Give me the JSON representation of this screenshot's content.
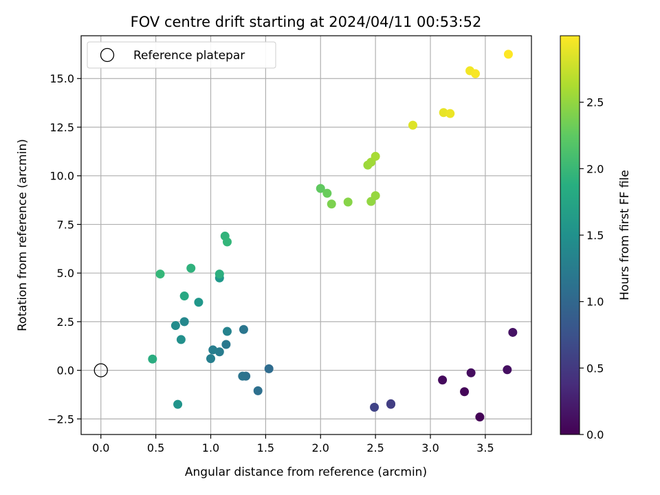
{
  "chart_data": {
    "type": "scatter",
    "title": "FOV centre drift starting at 2024/04/11 00:53:52",
    "xlabel": "Angular distance from reference (arcmin)",
    "ylabel": "Rotation from reference (arcmin)",
    "xlim": [
      -0.18,
      3.92
    ],
    "ylim": [
      -3.3,
      17.2
    ],
    "xticks": [
      0.0,
      0.5,
      1.0,
      1.5,
      2.0,
      2.5,
      3.0,
      3.5
    ],
    "xtick_labels": [
      "0.0",
      "0.5",
      "1.0",
      "1.5",
      "2.0",
      "2.5",
      "3.0",
      "3.5"
    ],
    "yticks": [
      -2.5,
      0.0,
      2.5,
      5.0,
      7.5,
      10.0,
      12.5,
      15.0
    ],
    "ytick_labels": [
      "−2.5",
      "0.0",
      "2.5",
      "5.0",
      "7.5",
      "10.0",
      "12.5",
      "15.0"
    ],
    "grid": true,
    "legend": {
      "placement": "top-left",
      "entries": [
        {
          "label": "Reference platepar",
          "marker": "open-circle"
        }
      ]
    },
    "reference_point": {
      "x": 0.0,
      "y": 0.0
    },
    "colorbar": {
      "label": "Hours from first FF file",
      "colormap": "viridis",
      "range": [
        0.0,
        3.0
      ],
      "ticks": [
        0.0,
        0.5,
        1.0,
        1.5,
        2.0,
        2.5
      ],
      "tick_labels": [
        "0.0",
        "0.5",
        "1.0",
        "1.5",
        "2.0",
        "2.5"
      ]
    },
    "points": [
      {
        "x": 3.45,
        "y": -2.4,
        "c": 0.02
      },
      {
        "x": 3.31,
        "y": -1.1,
        "c": 0.05
      },
      {
        "x": 3.11,
        "y": -0.5,
        "c": 0.08
      },
      {
        "x": 3.37,
        "y": -0.13,
        "c": 0.1
      },
      {
        "x": 3.7,
        "y": 0.03,
        "c": 0.12
      },
      {
        "x": 3.75,
        "y": 1.95,
        "c": 0.15
      },
      {
        "x": 2.64,
        "y": -1.75,
        "c": 0.52
      },
      {
        "x": 2.64,
        "y": -1.72,
        "c": 0.55
      },
      {
        "x": 2.49,
        "y": -1.9,
        "c": 0.6
      },
      {
        "x": 1.53,
        "y": 0.08,
        "c": 1.05
      },
      {
        "x": 1.43,
        "y": -1.05,
        "c": 1.1
      },
      {
        "x": 1.32,
        "y": -0.3,
        "c": 1.12
      },
      {
        "x": 1.29,
        "y": -0.3,
        "c": 1.15
      },
      {
        "x": 1.3,
        "y": 2.1,
        "c": 1.18
      },
      {
        "x": 1.14,
        "y": 1.33,
        "c": 1.2
      },
      {
        "x": 1.08,
        "y": 0.95,
        "c": 1.25
      },
      {
        "x": 1.02,
        "y": 1.05,
        "c": 1.28
      },
      {
        "x": 1.0,
        "y": 0.6,
        "c": 1.3
      },
      {
        "x": 1.15,
        "y": 2.0,
        "c": 1.35
      },
      {
        "x": 0.76,
        "y": 2.5,
        "c": 1.4
      },
      {
        "x": 0.68,
        "y": 2.3,
        "c": 1.45
      },
      {
        "x": 0.73,
        "y": 1.58,
        "c": 1.5
      },
      {
        "x": 0.7,
        "y": -1.75,
        "c": 1.55
      },
      {
        "x": 0.89,
        "y": 3.5,
        "c": 1.58
      },
      {
        "x": 1.08,
        "y": 4.75,
        "c": 1.6
      },
      {
        "x": 0.76,
        "y": 3.82,
        "c": 1.8
      },
      {
        "x": 0.47,
        "y": 0.58,
        "c": 1.85
      },
      {
        "x": 1.08,
        "y": 4.95,
        "c": 1.88
      },
      {
        "x": 0.82,
        "y": 5.25,
        "c": 1.92
      },
      {
        "x": 1.13,
        "y": 6.9,
        "c": 1.95
      },
      {
        "x": 1.15,
        "y": 6.6,
        "c": 1.98
      },
      {
        "x": 0.54,
        "y": 4.95,
        "c": 2.0
      },
      {
        "x": 2.0,
        "y": 9.35,
        "c": 2.25
      },
      {
        "x": 2.06,
        "y": 9.1,
        "c": 2.3
      },
      {
        "x": 2.1,
        "y": 8.55,
        "c": 2.4
      },
      {
        "x": 2.25,
        "y": 8.65,
        "c": 2.45
      },
      {
        "x": 2.46,
        "y": 8.68,
        "c": 2.5
      },
      {
        "x": 2.5,
        "y": 8.98,
        "c": 2.52
      },
      {
        "x": 2.43,
        "y": 10.55,
        "c": 2.55
      },
      {
        "x": 2.46,
        "y": 10.7,
        "c": 2.57
      },
      {
        "x": 2.5,
        "y": 11.0,
        "c": 2.6
      },
      {
        "x": 2.84,
        "y": 12.6,
        "c": 2.85
      },
      {
        "x": 3.12,
        "y": 13.25,
        "c": 2.9
      },
      {
        "x": 3.18,
        "y": 13.2,
        "c": 2.92
      },
      {
        "x": 3.36,
        "y": 15.4,
        "c": 2.95
      },
      {
        "x": 3.41,
        "y": 15.25,
        "c": 2.97
      },
      {
        "x": 3.71,
        "y": 16.25,
        "c": 3.0
      }
    ]
  }
}
